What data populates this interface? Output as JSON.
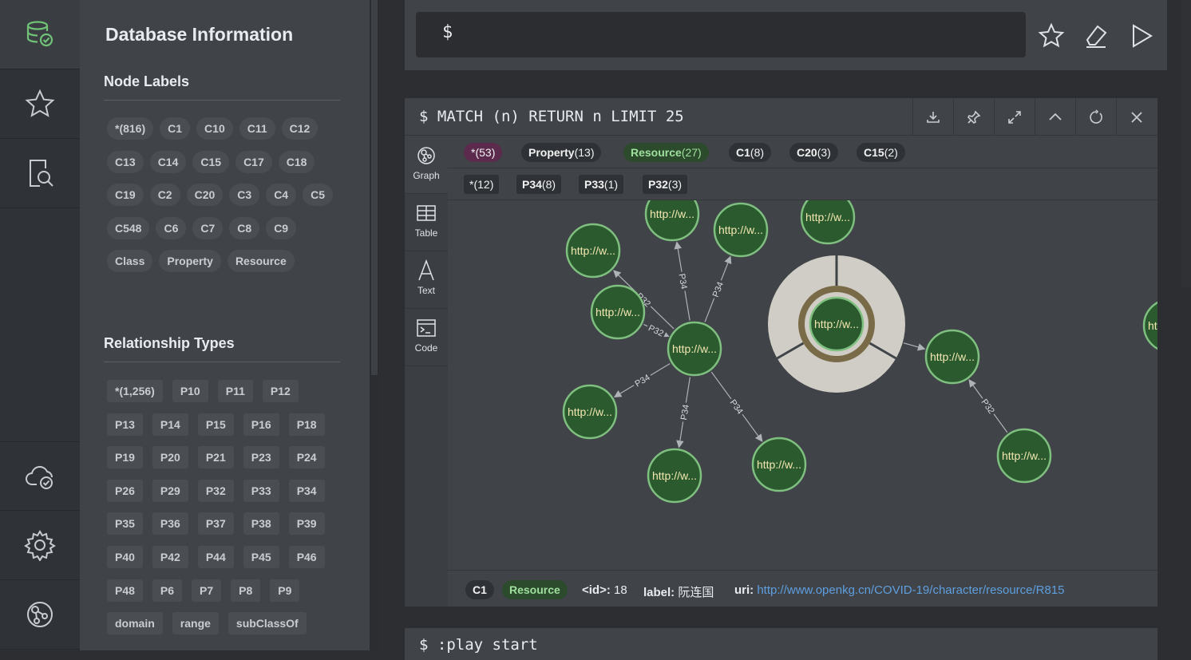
{
  "drawer": {
    "title": "Database Information",
    "node_labels_heading": "Node Labels",
    "node_labels": [
      "*(816)",
      "C1",
      "C10",
      "C11",
      "C12",
      "C13",
      "C14",
      "C15",
      "C17",
      "C18",
      "C19",
      "C2",
      "C20",
      "C3",
      "C4",
      "C5",
      "C548",
      "C6",
      "C7",
      "C8",
      "C9",
      "Class",
      "Property",
      "Resource"
    ],
    "rel_types_heading": "Relationship Types",
    "rel_types": [
      "*(1,256)",
      "P10",
      "P11",
      "P12",
      "P13",
      "P14",
      "P15",
      "P16",
      "P18",
      "P19",
      "P20",
      "P21",
      "P23",
      "P24",
      "P26",
      "P29",
      "P32",
      "P33",
      "P34",
      "P35",
      "P36",
      "P37",
      "P38",
      "P39",
      "P40",
      "P42",
      "P44",
      "P45",
      "P46",
      "P48",
      "P6",
      "P7",
      "P8",
      "P9",
      "domain",
      "range",
      "subClassOf"
    ]
  },
  "rail": {
    "icons": [
      "database-icon",
      "star-icon",
      "search-document-icon",
      "cloud-check-icon",
      "gear-icon",
      "neo4j-graph-icon"
    ]
  },
  "editor": {
    "prompt": "$"
  },
  "frame": {
    "command": "$ MATCH (n) RETURN n LIMIT 25",
    "views": [
      "Graph",
      "Table",
      "Text",
      "Code"
    ],
    "node_legend": [
      {
        "name": "*",
        "count": "(53)",
        "color": "#5b2a4d"
      },
      {
        "name": "Property",
        "count": "(13)",
        "color": "#2e3135"
      },
      {
        "name": "Resource",
        "count": "(27)",
        "color": "#2c4a2c"
      },
      {
        "name": "C1",
        "count": "(8)",
        "color": "#2e3135"
      },
      {
        "name": "C20",
        "count": "(3)",
        "color": "#2e3135"
      },
      {
        "name": "C15",
        "count": "(2)",
        "color": "#2e3135"
      }
    ],
    "rel_legend": [
      {
        "name": "*",
        "count": "(12)"
      },
      {
        "name": "P34",
        "count": "(8)"
      },
      {
        "name": "P33",
        "count": "(1)"
      },
      {
        "name": "P32",
        "count": "(3)"
      }
    ],
    "node_caption": "http://w...",
    "edge_labels": [
      "P32",
      "P34",
      "P34",
      "P32",
      "P34",
      "P34",
      "P34",
      "P32",
      "34"
    ],
    "status": {
      "chip1": "C1",
      "chip2": "Resource",
      "id_key": "<id>:",
      "id_val": "18",
      "label_key": "label:",
      "label_val": "阮连国",
      "uri_key": "uri:",
      "uri_val": "http://www.openkg.cn/COVID-19/character/resource/R815"
    }
  },
  "frame2": {
    "command": "$ :play start"
  },
  "colors": {
    "node_fill": "#2a5a2e",
    "node_stroke": "#7fbf7f",
    "node_text": "#f3e6b0",
    "edge": "#aeb3b8",
    "accent_green": "#6fbf73"
  }
}
